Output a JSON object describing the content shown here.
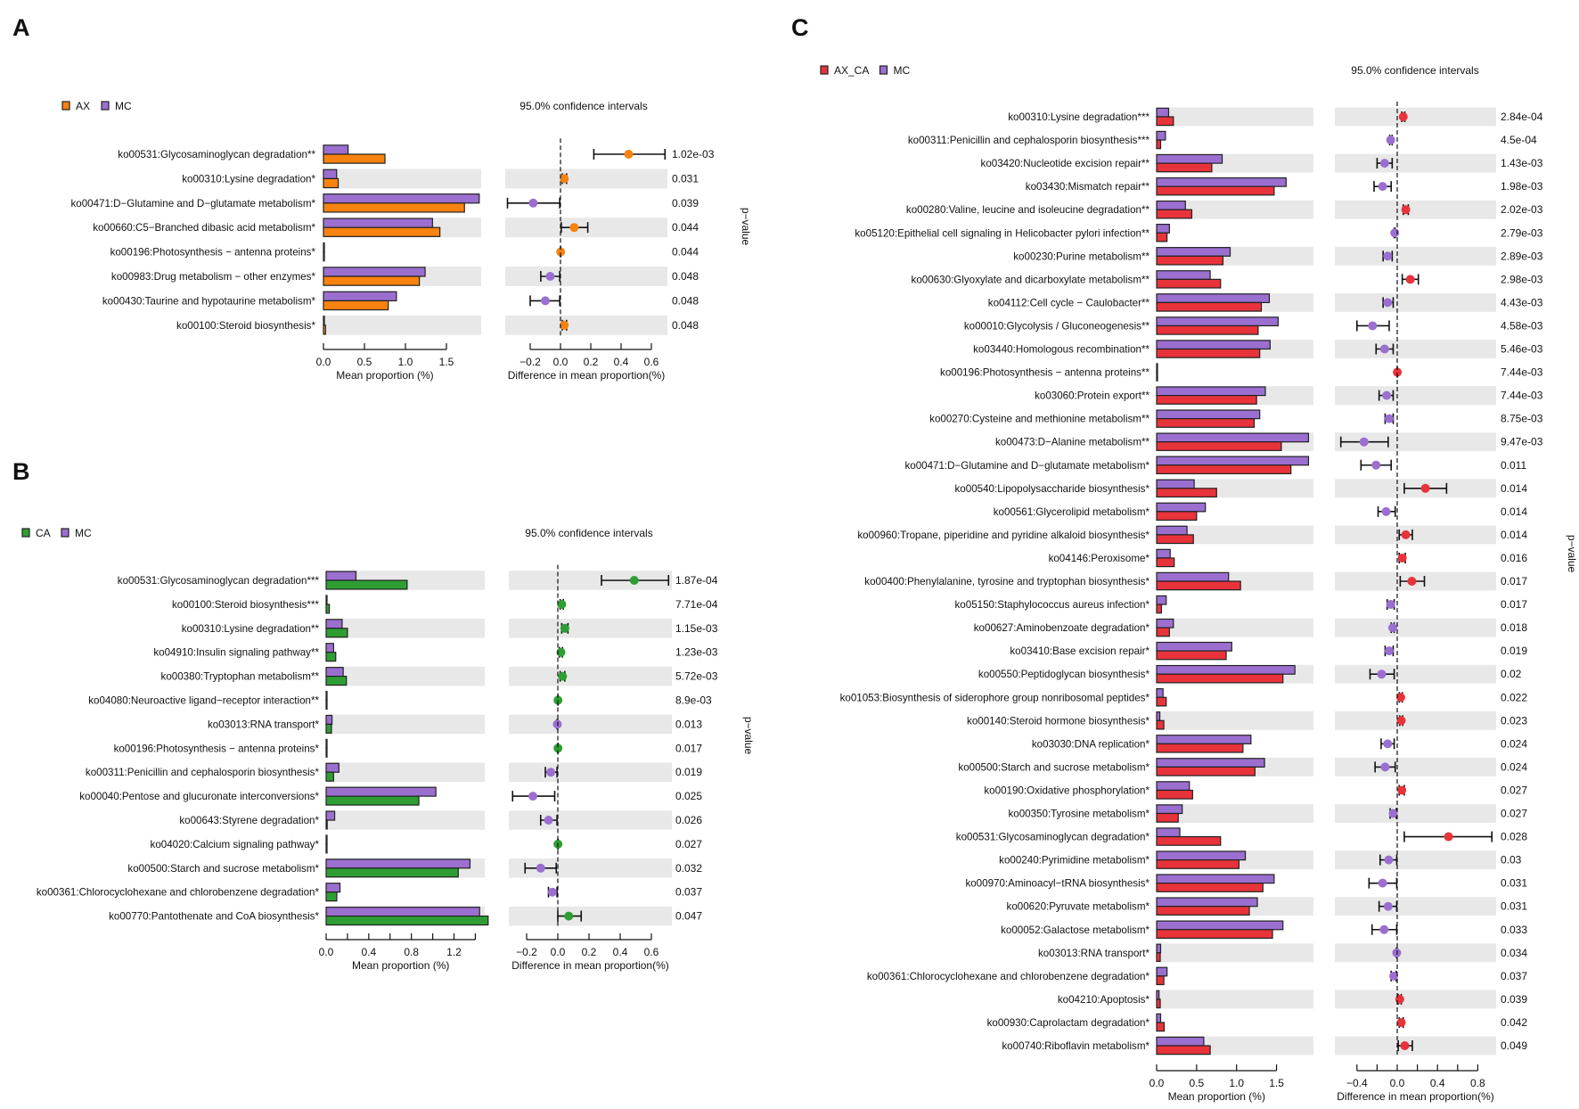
{
  "chart_data": [
    {
      "panel": "A",
      "type": "bar",
      "legend": [
        {
          "label": "AX",
          "color": "#f7820f"
        },
        {
          "label": "MC",
          "color": "#9b6fd0"
        }
      ],
      "ci_title": "95.0% confidence intervals",
      "bar_xlabel": "Mean proportion (%)",
      "diff_xlabel": "Difference in mean proportion(%)",
      "right_label": "p−value",
      "bar_axis": {
        "ticks": [
          0,
          0.5,
          1.0,
          1.5
        ],
        "labels": [
          {
            "v": 0,
            "t": "0.0"
          },
          {
            "v": 0.5,
            "t": "0.5"
          },
          {
            "v": 1.0,
            "t": "1.0"
          },
          {
            "v": 1.5,
            "t": "1.5"
          }
        ]
      },
      "diff_axis": {
        "ticks": [
          -0.2,
          0,
          0.2,
          0.4,
          0.6
        ],
        "labels": [
          {
            "v": -0.2,
            "t": "−0.2"
          },
          {
            "v": 0,
            "t": "0.0"
          },
          {
            "v": 0.2,
            "t": "0.2"
          },
          {
            "v": 0.4,
            "t": "0.4"
          },
          {
            "v": 0.6,
            "t": "0.6"
          }
        ]
      },
      "rows": [
        {
          "label": "ko00531:Glycosaminoglycan degradation**",
          "group": 0.75,
          "mc": 0.3,
          "diff": 0.45,
          "ci": [
            0.22,
            0.69
          ],
          "p": "1.02e-03"
        },
        {
          "label": "ko00310:Lysine degradation*",
          "group": 0.18,
          "mc": 0.16,
          "diff": 0.025,
          "ci": [
            0.012,
            0.04
          ],
          "p": "0.031"
        },
        {
          "label": "ko00471:D−Glutamine and D−glutamate metabolism*",
          "group": 1.72,
          "mc": 1.9,
          "diff": -0.18,
          "ci": [
            -0.35,
            -0.005
          ],
          "p": "0.039"
        },
        {
          "label": "ko00660:C5−Branched dibasic acid metabolism*",
          "group": 1.42,
          "mc": 1.33,
          "diff": 0.09,
          "ci": [
            0.005,
            0.18
          ],
          "p": "0.044"
        },
        {
          "label": "ko00196:Photosynthesis − antenna proteins*",
          "group": 0.002,
          "mc": 0.001,
          "diff": 0.001,
          "ci": [
            0.0,
            0.002
          ],
          "p": "0.044"
        },
        {
          "label": "ko00983:Drug metabolism − other enzymes*",
          "group": 1.17,
          "mc": 1.24,
          "diff": -0.068,
          "ci": [
            -0.13,
            -0.005
          ],
          "p": "0.048"
        },
        {
          "label": "ko00430:Taurine and hypotaurine metabolism*",
          "group": 0.79,
          "mc": 0.89,
          "diff": -0.1,
          "ci": [
            -0.2,
            -0.005
          ],
          "p": "0.048"
        },
        {
          "label": "ko00100:Steroid biosynthesis*",
          "group": 0.025,
          "mc": 0.01,
          "diff": 0.025,
          "ci": [
            0.012,
            0.04
          ],
          "p": "0.048"
        }
      ]
    },
    {
      "panel": "B",
      "type": "bar",
      "legend": [
        {
          "label": "CA",
          "color": "#2e9e34"
        },
        {
          "label": "MC",
          "color": "#9b6fd0"
        }
      ],
      "ci_title": "95.0% confidence intervals",
      "bar_xlabel": "Mean proportion (%)",
      "diff_xlabel": "Difference in mean proportion(%)",
      "right_label": "p−value",
      "bar_axis": {
        "ticks": [
          0,
          0.2,
          0.4,
          0.6,
          0.8,
          1.0,
          1.2,
          1.4
        ],
        "labels": [
          {
            "v": 0,
            "t": "0.0"
          },
          {
            "v": 0.4,
            "t": "0.4"
          },
          {
            "v": 0.8,
            "t": "0.8"
          },
          {
            "v": 1.2,
            "t": "1.2"
          }
        ]
      },
      "diff_axis": {
        "ticks": [
          -0.2,
          0,
          0.2,
          0.4,
          0.6
        ],
        "labels": [
          {
            "v": -0.2,
            "t": "−0.2"
          },
          {
            "v": 0,
            "t": "0.0"
          },
          {
            "v": 0.2,
            "t": "0.2"
          },
          {
            "v": 0.4,
            "t": "0.4"
          },
          {
            "v": 0.6,
            "t": "0.6"
          }
        ]
      },
      "rows": [
        {
          "label": "ko00531:Glycosaminoglycan degradation***",
          "group": 0.76,
          "mc": 0.28,
          "diff": 0.49,
          "ci": [
            0.28,
            0.71
          ],
          "p": "1.87e-04"
        },
        {
          "label": "ko00100:Steroid biosynthesis***",
          "group": 0.03,
          "mc": 0.005,
          "diff": 0.025,
          "ci": [
            0.015,
            0.035
          ],
          "p": "7.71e-04"
        },
        {
          "label": "ko00310:Lysine degradation**",
          "group": 0.2,
          "mc": 0.15,
          "diff": 0.045,
          "ci": [
            0.025,
            0.065
          ],
          "p": "1.15e-03"
        },
        {
          "label": "ko04910:Insulin signaling pathway**",
          "group": 0.09,
          "mc": 0.07,
          "diff": 0.02,
          "ci": [
            0.01,
            0.03
          ],
          "p": "1.23e-03"
        },
        {
          "label": "ko00380:Tryptophan metabolism**",
          "group": 0.19,
          "mc": 0.16,
          "diff": 0.03,
          "ci": [
            0.015,
            0.045
          ],
          "p": "5.72e-03"
        },
        {
          "label": "ko04080:Neuroactive ligand−receptor interaction**",
          "group": 0.002,
          "mc": 0.001,
          "diff": 0.001,
          "ci": [
            0.0,
            0.002
          ],
          "p": "8.9e-03"
        },
        {
          "label": "ko03013:RNA transport*",
          "group": 0.05,
          "mc": 0.055,
          "diff": -0.003,
          "ci": [
            -0.005,
            -0.001
          ],
          "p": "0.013"
        },
        {
          "label": "ko00196:Photosynthesis − antenna proteins*",
          "group": 0.002,
          "mc": 0.001,
          "diff": 0.001,
          "ci": [
            0.0,
            0.002
          ],
          "p": "0.017"
        },
        {
          "label": "ko00311:Penicillin and cephalosporin biosynthesis*",
          "group": 0.07,
          "mc": 0.12,
          "diff": -0.045,
          "ci": [
            -0.08,
            -0.005
          ],
          "p": "0.019"
        },
        {
          "label": "ko00040:Pentose and glucuronate interconversions*",
          "group": 0.87,
          "mc": 1.03,
          "diff": -0.16,
          "ci": [
            -0.29,
            -0.02
          ],
          "p": "0.025"
        },
        {
          "label": "ko00643:Styrene degradation*",
          "group": 0.01,
          "mc": 0.08,
          "diff": -0.06,
          "ci": [
            -0.11,
            -0.005
          ],
          "p": "0.026"
        },
        {
          "label": "ko04020:Calcium signaling pathway*",
          "group": 0.002,
          "mc": 0.001,
          "diff": 0.001,
          "ci": [
            0.0,
            0.002
          ],
          "p": "0.027"
        },
        {
          "label": "ko00500:Starch and sucrose metabolism*",
          "group": 1.24,
          "mc": 1.35,
          "diff": -0.11,
          "ci": [
            -0.21,
            -0.01
          ],
          "p": "0.032"
        },
        {
          "label": "ko00361:Chlorocyclohexane and chlorobenzene degradation*",
          "group": 0.1,
          "mc": 0.13,
          "diff": -0.035,
          "ci": [
            -0.06,
            -0.005
          ],
          "p": "0.037"
        },
        {
          "label": "ko00770:Pantothenate and CoA biosynthesis*",
          "group": 1.52,
          "mc": 1.44,
          "diff": 0.07,
          "ci": [
            0.0,
            0.15
          ],
          "p": "0.047"
        }
      ]
    },
    {
      "panel": "C",
      "type": "bar",
      "legend": [
        {
          "label": "AX_CA",
          "color": "#e8333b"
        },
        {
          "label": "MC",
          "color": "#9b6fd0"
        }
      ],
      "ci_title": "95.0% confidence intervals",
      "bar_xlabel": "Mean proportion (%)",
      "diff_xlabel": "Difference in mean proportion(%)",
      "right_label": "p−value",
      "bar_axis": {
        "ticks": [
          0,
          0.5,
          1.0,
          1.5
        ],
        "labels": [
          {
            "v": 0,
            "t": "0.0"
          },
          {
            "v": 0.5,
            "t": "0.5"
          },
          {
            "v": 1.0,
            "t": "1.0"
          },
          {
            "v": 1.5,
            "t": "1.5"
          }
        ]
      },
      "diff_axis": {
        "ticks": [
          -0.4,
          -0.2,
          0,
          0.2,
          0.4,
          0.6,
          0.8
        ],
        "labels": [
          {
            "v": -0.4,
            "t": "−0.4"
          },
          {
            "v": 0,
            "t": "0.0"
          },
          {
            "v": 0.4,
            "t": "0.4"
          },
          {
            "v": 0.8,
            "t": "0.8"
          }
        ]
      },
      "rows": [
        {
          "label": "ko00310:Lysine degradation***",
          "group": 0.21,
          "mc": 0.15,
          "diff": 0.06,
          "ci": [
            0.045,
            0.075
          ],
          "p": "2.84e-04"
        },
        {
          "label": "ko00311:Penicillin and cephalosporin biosynthesis***",
          "group": 0.05,
          "mc": 0.11,
          "diff": -0.065,
          "ci": [
            -0.075,
            -0.05
          ],
          "p": "4.5e-04"
        },
        {
          "label": "ko03420:Nucleotide excision repair**",
          "group": 0.69,
          "mc": 0.82,
          "diff": -0.125,
          "ci": [
            -0.2,
            -0.05
          ],
          "p": "1.43e-03"
        },
        {
          "label": "ko03430:Mismatch repair**",
          "group": 1.47,
          "mc": 1.62,
          "diff": -0.145,
          "ci": [
            -0.23,
            -0.06
          ],
          "p": "1.98e-03"
        },
        {
          "label": "ko00280:Valine, leucine and isoleucine degradation**",
          "group": 0.44,
          "mc": 0.36,
          "diff": 0.085,
          "ci": [
            0.06,
            0.11
          ],
          "p": "2.02e-03"
        },
        {
          "label": "ko05120:Epithelial cell signaling in Helicobacter pylori infection**",
          "group": 0.13,
          "mc": 0.16,
          "diff": -0.025,
          "ci": [
            -0.03,
            -0.02
          ],
          "p": "2.79e-03"
        },
        {
          "label": "ko00230:Purine metabolism**",
          "group": 0.83,
          "mc": 0.92,
          "diff": -0.095,
          "ci": [
            -0.14,
            -0.05
          ],
          "p": "2.89e-03"
        },
        {
          "label": "ko00630:Glyoxylate and dicarboxylate metabolism**",
          "group": 0.8,
          "mc": 0.67,
          "diff": 0.13,
          "ci": [
            0.05,
            0.21
          ],
          "p": "2.98e-03"
        },
        {
          "label": "ko04112:Cell cycle − Caulobacter**",
          "group": 1.31,
          "mc": 1.41,
          "diff": -0.095,
          "ci": [
            -0.14,
            -0.04
          ],
          "p": "4.43e-03"
        },
        {
          "label": "ko00010:Glycolysis / Gluconeogenesis**",
          "group": 1.27,
          "mc": 1.52,
          "diff": -0.245,
          "ci": [
            -0.4,
            -0.08
          ],
          "p": "4.58e-03"
        },
        {
          "label": "ko03440:Homologous recombination**",
          "group": 1.29,
          "mc": 1.42,
          "diff": -0.125,
          "ci": [
            -0.21,
            -0.04
          ],
          "p": "5.46e-03"
        },
        {
          "label": "ko00196:Photosynthesis − antenna proteins**",
          "group": 0.003,
          "mc": 0.002,
          "diff": 0.001,
          "ci": [
            0.0,
            0.002
          ],
          "p": "7.44e-03"
        },
        {
          "label": "ko03060:Protein export**",
          "group": 1.25,
          "mc": 1.36,
          "diff": -0.105,
          "ci": [
            -0.18,
            -0.04
          ],
          "p": "7.44e-03"
        },
        {
          "label": "ko00270:Cysteine and methionine metabolism**",
          "group": 1.22,
          "mc": 1.29,
          "diff": -0.08,
          "ci": [
            -0.12,
            -0.04
          ],
          "p": "8.75e-03"
        },
        {
          "label": "ko00473:D−Alanine metabolism**",
          "group": 1.56,
          "mc": 1.9,
          "diff": -0.33,
          "ci": [
            -0.56,
            -0.09
          ],
          "p": "9.47e-03"
        },
        {
          "label": "ko00471:D−Glutamine and D−glutamate metabolism*",
          "group": 1.68,
          "mc": 1.9,
          "diff": -0.21,
          "ci": [
            -0.36,
            -0.06
          ],
          "p": "0.011"
        },
        {
          "label": "ko00540:Lipopolysaccharide biosynthesis*",
          "group": 0.75,
          "mc": 0.47,
          "diff": 0.28,
          "ci": [
            0.07,
            0.49
          ],
          "p": "0.014"
        },
        {
          "label": "ko00561:Glycerolipid metabolism*",
          "group": 0.5,
          "mc": 0.61,
          "diff": -0.11,
          "ci": [
            -0.19,
            -0.02
          ],
          "p": "0.014"
        },
        {
          "label": "ko00960:Tropane, piperidine and pyridine alkaloid biosynthesis*",
          "group": 0.46,
          "mc": 0.38,
          "diff": 0.085,
          "ci": [
            0.02,
            0.15
          ],
          "p": "0.014"
        },
        {
          "label": "ko04146:Peroxisome*",
          "group": 0.22,
          "mc": 0.17,
          "diff": 0.05,
          "ci": [
            0.02,
            0.08
          ],
          "p": "0.016"
        },
        {
          "label": "ko00400:Phenylalanine, tyrosine and tryptophan biosynthesis*",
          "group": 1.05,
          "mc": 0.9,
          "diff": 0.145,
          "ci": [
            0.03,
            0.27
          ],
          "p": "0.017"
        },
        {
          "label": "ko05150:Staphylococcus aureus infection*",
          "group": 0.06,
          "mc": 0.12,
          "diff": -0.065,
          "ci": [
            -0.1,
            -0.03
          ],
          "p": "0.017"
        },
        {
          "label": "ko00627:Aminobenzoate degradation*",
          "group": 0.16,
          "mc": 0.21,
          "diff": -0.045,
          "ci": [
            -0.06,
            -0.03
          ],
          "p": "0.018"
        },
        {
          "label": "ko03410:Base excision repair*",
          "group": 0.87,
          "mc": 0.94,
          "diff": -0.08,
          "ci": [
            -0.12,
            -0.04
          ],
          "p": "0.019"
        },
        {
          "label": "ko00550:Peptidoglycan biosynthesis*",
          "group": 1.58,
          "mc": 1.73,
          "diff": -0.155,
          "ci": [
            -0.27,
            -0.03
          ],
          "p": "0.02"
        },
        {
          "label": "ko01053:Biosynthesis of siderophore group nonribosomal peptides*",
          "group": 0.12,
          "mc": 0.08,
          "diff": 0.035,
          "ci": [
            0.02,
            0.05
          ],
          "p": "0.022"
        },
        {
          "label": "ko00140:Steroid hormone biosynthesis*",
          "group": 0.09,
          "mc": 0.04,
          "diff": 0.04,
          "ci": [
            0.025,
            0.055
          ],
          "p": "0.023"
        },
        {
          "label": "ko03030:DNA replication*",
          "group": 1.08,
          "mc": 1.18,
          "diff": -0.095,
          "ci": [
            -0.16,
            -0.03
          ],
          "p": "0.024"
        },
        {
          "label": "ko00500:Starch and sucrose metabolism*",
          "group": 1.23,
          "mc": 1.35,
          "diff": -0.12,
          "ci": [
            -0.22,
            -0.02
          ],
          "p": "0.024"
        },
        {
          "label": "ko00190:Oxidative phosphorylation*",
          "group": 0.45,
          "mc": 0.41,
          "diff": 0.045,
          "ci": [
            0.02,
            0.07
          ],
          "p": "0.027"
        },
        {
          "label": "ko00350:Tyrosine metabolism*",
          "group": 0.27,
          "mc": 0.32,
          "diff": -0.04,
          "ci": [
            -0.07,
            -0.01
          ],
          "p": "0.027"
        },
        {
          "label": "ko00531:Glycosaminoglycan degradation*",
          "group": 0.8,
          "mc": 0.29,
          "diff": 0.51,
          "ci": [
            0.07,
            0.94
          ],
          "p": "0.028"
        },
        {
          "label": "ko00240:Pyrimidine metabolism*",
          "group": 1.03,
          "mc": 1.11,
          "diff": -0.085,
          "ci": [
            -0.17,
            -0.005
          ],
          "p": "0.03"
        },
        {
          "label": "ko00970:Aminoacyl−tRNA biosynthesis*",
          "group": 1.33,
          "mc": 1.47,
          "diff": -0.145,
          "ci": [
            -0.28,
            -0.005
          ],
          "p": "0.031"
        },
        {
          "label": "ko00620:Pyruvate metabolism*",
          "group": 1.16,
          "mc": 1.26,
          "diff": -0.09,
          "ci": [
            -0.18,
            -0.005
          ],
          "p": "0.031"
        },
        {
          "label": "ko00052:Galactose metabolism*",
          "group": 1.45,
          "mc": 1.58,
          "diff": -0.13,
          "ci": [
            -0.25,
            -0.005
          ],
          "p": "0.033"
        },
        {
          "label": "ko03013:RNA transport*",
          "group": 0.045,
          "mc": 0.05,
          "diff": -0.005,
          "ci": [
            -0.008,
            -0.002
          ],
          "p": "0.034"
        },
        {
          "label": "ko00361:Chlorocyclohexane and chlorobenzene degradation*",
          "group": 0.09,
          "mc": 0.13,
          "diff": -0.035,
          "ci": [
            -0.06,
            -0.01
          ],
          "p": "0.037"
        },
        {
          "label": "ko04210:Apoptosis*",
          "group": 0.045,
          "mc": 0.03,
          "diff": 0.025,
          "ci": [
            0.01,
            0.04
          ],
          "p": "0.039"
        },
        {
          "label": "ko00930:Caprolactam degradation*",
          "group": 0.095,
          "mc": 0.05,
          "diff": 0.04,
          "ci": [
            0.02,
            0.06
          ],
          "p": "0.042"
        },
        {
          "label": "ko00740:Riboflavin metabolism*",
          "group": 0.67,
          "mc": 0.59,
          "diff": 0.075,
          "ci": [
            0.01,
            0.15
          ],
          "p": "0.049"
        }
      ]
    }
  ]
}
